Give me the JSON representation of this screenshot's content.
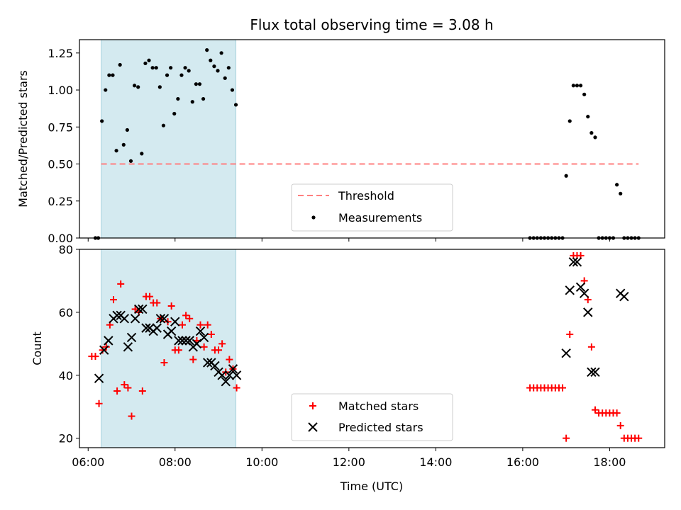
{
  "chart_data": [
    {
      "type": "scatter",
      "title": "Flux total observing time = 3.08 h",
      "ylabel": "Matched/Predicted stars",
      "xlim": [
        "05:48",
        "19:16"
      ],
      "ylim": [
        0,
        1.34
      ],
      "yticks": [
        "0.00",
        "0.25",
        "0.50",
        "0.75",
        "1.00",
        "1.25"
      ],
      "grid": false,
      "legend": "lower center",
      "shaded_span": {
        "x": [
          "06:18",
          "09:24"
        ],
        "color": "#d4eaf0"
      },
      "threshold": {
        "name": "Threshold",
        "y": 0.5,
        "x": [
          "06:18",
          "18:40"
        ],
        "color": "#ff7f7f",
        "style": "dashed"
      },
      "series": [
        {
          "name": "Measurements",
          "marker": "dot",
          "color": "#000000",
          "points": [
            [
              "06:10",
              0
            ],
            [
              "06:14",
              0
            ],
            [
              "06:19",
              0.79
            ],
            [
              "06:24",
              1.0
            ],
            [
              "06:29",
              1.1
            ],
            [
              "06:34",
              1.1
            ],
            [
              "06:39",
              0.59
            ],
            [
              "06:44",
              1.17
            ],
            [
              "06:49",
              0.63
            ],
            [
              "06:54",
              0.73
            ],
            [
              "06:59",
              0.52
            ],
            [
              "07:04",
              1.03
            ],
            [
              "07:09",
              1.02
            ],
            [
              "07:14",
              0.57
            ],
            [
              "07:19",
              1.18
            ],
            [
              "07:24",
              1.2
            ],
            [
              "07:29",
              1.15
            ],
            [
              "07:34",
              1.15
            ],
            [
              "07:39",
              1.02
            ],
            [
              "07:44",
              0.76
            ],
            [
              "07:49",
              1.1
            ],
            [
              "07:54",
              1.15
            ],
            [
              "07:59",
              0.84
            ],
            [
              "08:04",
              0.94
            ],
            [
              "08:09",
              1.1
            ],
            [
              "08:14",
              1.15
            ],
            [
              "08:19",
              1.13
            ],
            [
              "08:24",
              0.92
            ],
            [
              "08:29",
              1.04
            ],
            [
              "08:34",
              1.04
            ],
            [
              "08:39",
              0.94
            ],
            [
              "08:44",
              1.27
            ],
            [
              "08:49",
              1.2
            ],
            [
              "08:54",
              1.16
            ],
            [
              "08:59",
              1.13
            ],
            [
              "09:04",
              1.25
            ],
            [
              "09:09",
              1.08
            ],
            [
              "09:14",
              1.15
            ],
            [
              "09:19",
              1.0
            ],
            [
              "09:24",
              0.9
            ],
            [
              "16:10",
              0
            ],
            [
              "16:15",
              0
            ],
            [
              "16:20",
              0
            ],
            [
              "16:25",
              0
            ],
            [
              "16:30",
              0
            ],
            [
              "16:35",
              0
            ],
            [
              "16:40",
              0
            ],
            [
              "16:45",
              0
            ],
            [
              "16:50",
              0
            ],
            [
              "16:55",
              0
            ],
            [
              "17:00",
              0.42
            ],
            [
              "17:05",
              0.79
            ],
            [
              "17:10",
              1.03
            ],
            [
              "17:15",
              1.03
            ],
            [
              "17:20",
              1.03
            ],
            [
              "17:25",
              0.97
            ],
            [
              "17:30",
              0.82
            ],
            [
              "17:35",
              0.71
            ],
            [
              "17:40",
              0.68
            ],
            [
              "17:45",
              0
            ],
            [
              "17:50",
              0
            ],
            [
              "17:55",
              0
            ],
            [
              "18:00",
              0
            ],
            [
              "18:05",
              0
            ],
            [
              "18:10",
              0.36
            ],
            [
              "18:15",
              0.3
            ],
            [
              "18:20",
              0
            ],
            [
              "18:25",
              0
            ],
            [
              "18:30",
              0
            ],
            [
              "18:35",
              0
            ],
            [
              "18:40",
              0
            ]
          ]
        }
      ]
    },
    {
      "type": "scatter",
      "xlabel": "Time (UTC)",
      "ylabel": "Count",
      "xlim": [
        "05:48",
        "19:16"
      ],
      "ylim": [
        17,
        80
      ],
      "yticks": [
        "20",
        "40",
        "60",
        "80"
      ],
      "xticks": [
        "06:00",
        "08:00",
        "10:00",
        "12:00",
        "14:00",
        "16:00",
        "18:00"
      ],
      "grid": false,
      "legend": "lower center",
      "shaded_span": {
        "x": [
          "06:18",
          "09:24"
        ],
        "color": "#d4eaf0"
      },
      "series": [
        {
          "name": "Matched stars",
          "marker": "plus",
          "color": "#ff0000",
          "points": [
            [
              "06:05",
              46
            ],
            [
              "06:10",
              46
            ],
            [
              "06:15",
              31
            ],
            [
              "06:20",
              48
            ],
            [
              "06:25",
              49
            ],
            [
              "06:30",
              56
            ],
            [
              "06:35",
              64
            ],
            [
              "06:40",
              35
            ],
            [
              "06:45",
              69
            ],
            [
              "06:50",
              37
            ],
            [
              "06:55",
              36
            ],
            [
              "07:00",
              27
            ],
            [
              "07:05",
              61
            ],
            [
              "07:10",
              60
            ],
            [
              "07:15",
              35
            ],
            [
              "07:20",
              65
            ],
            [
              "07:25",
              65
            ],
            [
              "07:30",
              63
            ],
            [
              "07:35",
              63
            ],
            [
              "07:40",
              58
            ],
            [
              "07:45",
              44
            ],
            [
              "07:50",
              57
            ],
            [
              "07:55",
              62
            ],
            [
              "08:00",
              48
            ],
            [
              "08:05",
              48
            ],
            [
              "08:10",
              56
            ],
            [
              "08:15",
              59
            ],
            [
              "08:20",
              58
            ],
            [
              "08:25",
              45
            ],
            [
              "08:30",
              51
            ],
            [
              "08:35",
              56
            ],
            [
              "08:40",
              49
            ],
            [
              "08:45",
              56
            ],
            [
              "08:50",
              53
            ],
            [
              "08:55",
              48
            ],
            [
              "09:00",
              48
            ],
            [
              "09:05",
              50
            ],
            [
              "09:10",
              41
            ],
            [
              "09:15",
              45
            ],
            [
              "09:20",
              42
            ],
            [
              "09:25",
              36
            ],
            [
              "16:10",
              36
            ],
            [
              "16:15",
              36
            ],
            [
              "16:20",
              36
            ],
            [
              "16:25",
              36
            ],
            [
              "16:30",
              36
            ],
            [
              "16:35",
              36
            ],
            [
              "16:40",
              36
            ],
            [
              "16:45",
              36
            ],
            [
              "16:50",
              36
            ],
            [
              "16:55",
              36
            ],
            [
              "17:00",
              20
            ],
            [
              "17:05",
              53
            ],
            [
              "17:10",
              78
            ],
            [
              "17:15",
              78
            ],
            [
              "17:20",
              78
            ],
            [
              "17:25",
              70
            ],
            [
              "17:30",
              64
            ],
            [
              "17:35",
              49
            ],
            [
              "17:40",
              29
            ],
            [
              "17:45",
              28
            ],
            [
              "17:50",
              28
            ],
            [
              "17:55",
              28
            ],
            [
              "18:00",
              28
            ],
            [
              "18:05",
              28
            ],
            [
              "18:10",
              28
            ],
            [
              "18:15",
              24
            ],
            [
              "18:20",
              20
            ],
            [
              "18:25",
              20
            ],
            [
              "18:30",
              20
            ],
            [
              "18:35",
              20
            ],
            [
              "18:40",
              20
            ]
          ]
        },
        {
          "name": "Predicted stars",
          "marker": "x",
          "color": "#000000",
          "points": [
            [
              "06:15",
              39
            ],
            [
              "06:22",
              48
            ],
            [
              "06:28",
              51
            ],
            [
              "06:35",
              58
            ],
            [
              "06:40",
              59
            ],
            [
              "06:45",
              59
            ],
            [
              "06:50",
              58
            ],
            [
              "06:55",
              49
            ],
            [
              "07:00",
              52
            ],
            [
              "07:05",
              58
            ],
            [
              "07:10",
              61
            ],
            [
              "07:15",
              61
            ],
            [
              "07:20",
              55
            ],
            [
              "07:25",
              55
            ],
            [
              "07:30",
              54
            ],
            [
              "07:35",
              55
            ],
            [
              "07:40",
              58
            ],
            [
              "07:45",
              58
            ],
            [
              "07:50",
              53
            ],
            [
              "07:55",
              54
            ],
            [
              "08:00",
              57
            ],
            [
              "08:05",
              51
            ],
            [
              "08:10",
              51
            ],
            [
              "08:15",
              51
            ],
            [
              "08:20",
              51
            ],
            [
              "08:25",
              49
            ],
            [
              "08:30",
              50
            ],
            [
              "08:35",
              54
            ],
            [
              "08:40",
              52
            ],
            [
              "08:45",
              44
            ],
            [
              "08:50",
              44
            ],
            [
              "08:55",
              43
            ],
            [
              "09:00",
              41
            ],
            [
              "09:05",
              40
            ],
            [
              "09:10",
              38
            ],
            [
              "09:15",
              40
            ],
            [
              "09:20",
              42
            ],
            [
              "09:25",
              40
            ],
            [
              "17:00",
              47
            ],
            [
              "17:05",
              67
            ],
            [
              "17:10",
              76
            ],
            [
              "17:15",
              76
            ],
            [
              "17:20",
              68
            ],
            [
              "17:25",
              66
            ],
            [
              "17:30",
              60
            ],
            [
              "17:35",
              41
            ],
            [
              "17:40",
              41
            ],
            [
              "18:15",
              66
            ],
            [
              "18:20",
              65
            ]
          ]
        }
      ]
    }
  ]
}
